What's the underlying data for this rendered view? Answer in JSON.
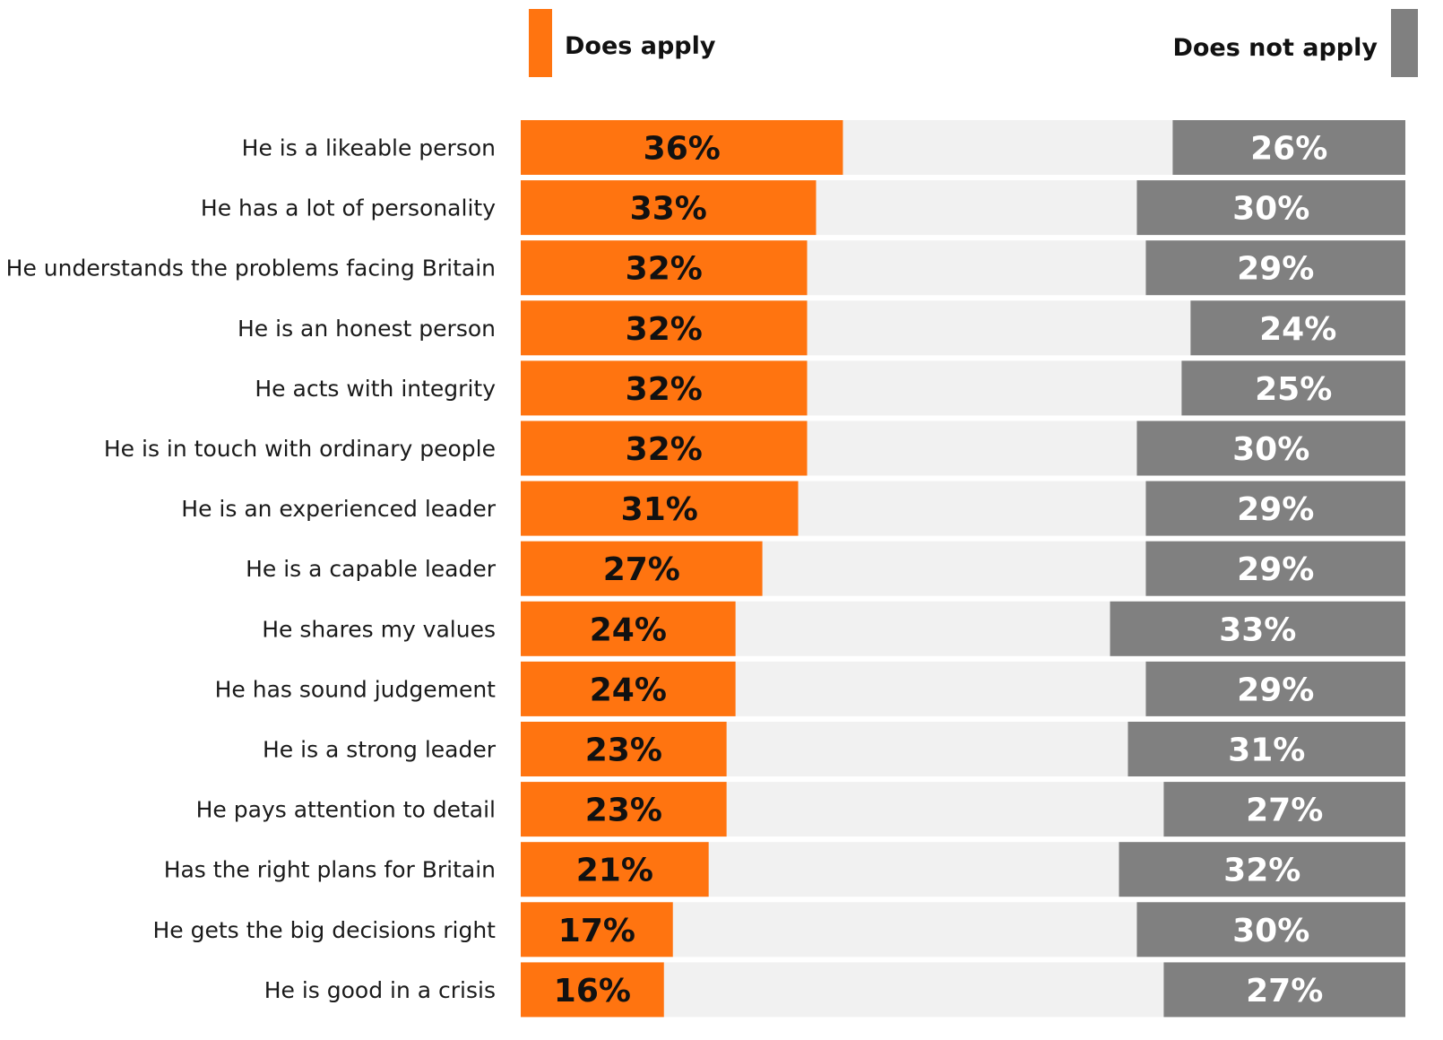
{
  "colors": {
    "apply": "#ff7410",
    "not_apply": "#808080",
    "track": "#f1f1f1"
  },
  "chart_data": {
    "type": "bar",
    "orientation": "horizontal",
    "stacked": "diverging",
    "xlim": [
      0,
      100
    ],
    "legend": {
      "placement": "top",
      "apply_label": "Does apply",
      "not_apply_label": "Does not apply"
    },
    "categories": [
      "He is a likeable person",
      "He has a lot of personality",
      "He understands the problems facing Britain",
      "He is an honest person",
      "He acts with integrity",
      "He is in touch with ordinary people",
      "He is an experienced leader",
      "He is a capable leader",
      "He shares my values",
      "He has sound judgement",
      "He is a strong leader",
      "He pays attention to detail",
      "Has the right plans for Britain",
      "He gets the big decisions right",
      "He is good in a crisis"
    ],
    "series": [
      {
        "name": "Does apply",
        "values": [
          36,
          33,
          32,
          32,
          32,
          32,
          31,
          27,
          24,
          24,
          23,
          23,
          21,
          17,
          16
        ],
        "labels": [
          "36%",
          "33%",
          "32%",
          "32%",
          "32%",
          "32%",
          "31%",
          "27%",
          "24%",
          "24%",
          "23%",
          "23%",
          "21%",
          "17%",
          "16%"
        ]
      },
      {
        "name": "Does not apply",
        "values": [
          26,
          30,
          29,
          24,
          25,
          30,
          29,
          29,
          33,
          29,
          31,
          27,
          32,
          30,
          27
        ],
        "labels": [
          "26%",
          "30%",
          "29%",
          "24%",
          "25%",
          "30%",
          "29%",
          "29%",
          "33%",
          "29%",
          "31%",
          "27%",
          "32%",
          "30%",
          "27%"
        ]
      }
    ]
  }
}
